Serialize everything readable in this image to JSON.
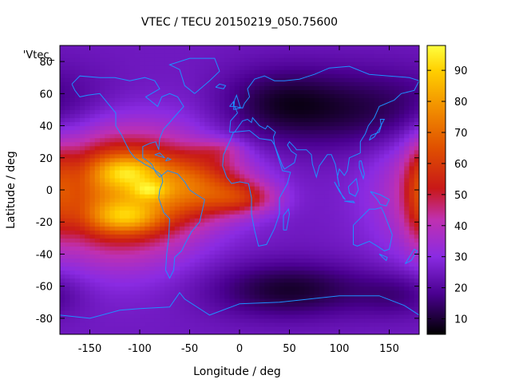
{
  "chart_data": {
    "type": "heatmap",
    "title": "VTEC / TECU 20150219_050.75600",
    "xlabel": "Longitude / deg",
    "ylabel": "Latitude / deg",
    "legend_label": "'Vtec_",
    "xlim": [
      -180,
      180
    ],
    "ylim": [
      -90,
      90
    ],
    "x_ticks": [
      -150,
      -100,
      -50,
      0,
      50,
      100,
      150
    ],
    "y_ticks": [
      -80,
      -60,
      -40,
      -20,
      0,
      20,
      40,
      60,
      80
    ],
    "colorbar": {
      "range": [
        5,
        98
      ],
      "ticks": [
        10,
        20,
        30,
        40,
        50,
        60,
        70,
        80,
        90
      ],
      "stops": [
        {
          "v": 5,
          "color": "#000000"
        },
        {
          "v": 18,
          "color": "#4a0090"
        },
        {
          "v": 30,
          "color": "#8a2be2"
        },
        {
          "v": 42,
          "color": "#c030b0"
        },
        {
          "v": 52,
          "color": "#c81818"
        },
        {
          "v": 65,
          "color": "#e05000"
        },
        {
          "v": 78,
          "color": "#f29000"
        },
        {
          "v": 90,
          "color": "#ffd000"
        },
        {
          "v": 98,
          "color": "#ffff40"
        }
      ]
    },
    "background_value": 25,
    "blobs": [
      {
        "lon": -120,
        "lat": 0,
        "slon": 55,
        "slat": 28,
        "amp": 48
      },
      {
        "lon": -115,
        "lat": 12,
        "slon": 22,
        "slat": 7,
        "amp": 22
      },
      {
        "lon": -115,
        "lat": -17,
        "slon": 25,
        "slat": 7,
        "amp": 24
      },
      {
        "lon": -90,
        "lat": 0,
        "slon": 12,
        "slat": 4,
        "amp": 15
      },
      {
        "lon": -40,
        "lat": 3,
        "slon": 40,
        "slat": 14,
        "amp": 28
      },
      {
        "lon": 5,
        "lat": -5,
        "slon": 25,
        "slat": 7,
        "amp": 18
      },
      {
        "lon": -20,
        "lat": 25,
        "slon": 18,
        "slat": 5,
        "amp": 10
      },
      {
        "lon": 130,
        "lat": 50,
        "slon": 80,
        "slat": 18,
        "amp": -14
      },
      {
        "lon": 40,
        "lat": 55,
        "slon": 40,
        "slat": 15,
        "amp": -10
      },
      {
        "lon": 50,
        "lat": -62,
        "slon": 55,
        "slat": 12,
        "amp": -16
      },
      {
        "lon": 160,
        "lat": -65,
        "slon": 30,
        "slat": 10,
        "amp": -8
      },
      {
        "lon": 180,
        "lat": 0,
        "slon": 10,
        "slat": 22,
        "amp": 14
      }
    ],
    "coastlines": [
      [
        [
          -168,
          66
        ],
        [
          -160,
          71
        ],
        [
          -140,
          70
        ],
        [
          -125,
          70
        ],
        [
          -110,
          68
        ],
        [
          -95,
          70
        ],
        [
          -85,
          68
        ],
        [
          -80,
          63
        ],
        [
          -94,
          58
        ],
        [
          -82,
          52
        ],
        [
          -78,
          58
        ],
        [
          -70,
          60
        ],
        [
          -62,
          58
        ],
        [
          -56,
          52
        ],
        [
          -66,
          45
        ],
        [
          -70,
          42
        ],
        [
          -76,
          38
        ],
        [
          -80,
          32
        ],
        [
          -81,
          25
        ],
        [
          -84,
          30
        ],
        [
          -90,
          29
        ],
        [
          -97,
          27
        ],
        [
          -97,
          20
        ],
        [
          -92,
          18
        ],
        [
          -88,
          16
        ],
        [
          -84,
          11
        ],
        [
          -80,
          8
        ],
        [
          -78,
          9
        ],
        [
          -86,
          13
        ],
        [
          -95,
          16
        ],
        [
          -105,
          20
        ],
        [
          -110,
          24
        ],
        [
          -115,
          30
        ],
        [
          -118,
          34
        ],
        [
          -124,
          40
        ],
        [
          -124,
          48
        ],
        [
          -132,
          54
        ],
        [
          -140,
          60
        ],
        [
          -152,
          59
        ],
        [
          -160,
          58
        ],
        [
          -165,
          62
        ],
        [
          -168,
          66
        ]
      ],
      [
        [
          -78,
          9
        ],
        [
          -72,
          12
        ],
        [
          -62,
          10
        ],
        [
          -55,
          5
        ],
        [
          -50,
          0
        ],
        [
          -43,
          -3
        ],
        [
          -35,
          -6
        ],
        [
          -37,
          -12
        ],
        [
          -40,
          -20
        ],
        [
          -48,
          -26
        ],
        [
          -55,
          -34
        ],
        [
          -58,
          -38
        ],
        [
          -65,
          -42
        ],
        [
          -66,
          -50
        ],
        [
          -70,
          -55
        ],
        [
          -74,
          -50
        ],
        [
          -73,
          -40
        ],
        [
          -71,
          -30
        ],
        [
          -70,
          -18
        ],
        [
          -76,
          -14
        ],
        [
          -81,
          -5
        ],
        [
          -80,
          0
        ],
        [
          -77,
          5
        ],
        [
          -78,
          9
        ]
      ],
      [
        [
          -17,
          15
        ],
        [
          -16,
          22
        ],
        [
          -10,
          30
        ],
        [
          -6,
          36
        ],
        [
          10,
          37
        ],
        [
          20,
          32
        ],
        [
          32,
          31
        ],
        [
          35,
          28
        ],
        [
          43,
          12
        ],
        [
          51,
          11
        ],
        [
          48,
          4
        ],
        [
          40,
          -5
        ],
        [
          40,
          -15
        ],
        [
          35,
          -24
        ],
        [
          27,
          -34
        ],
        [
          19,
          -35
        ],
        [
          15,
          -25
        ],
        [
          12,
          -15
        ],
        [
          12,
          -5
        ],
        [
          9,
          4
        ],
        [
          0,
          5
        ],
        [
          -8,
          4
        ],
        [
          -13,
          8
        ],
        [
          -17,
          15
        ]
      ],
      [
        [
          -10,
          36
        ],
        [
          -9,
          43
        ],
        [
          -2,
          48
        ],
        [
          -5,
          52
        ],
        [
          3,
          51
        ],
        [
          5,
          54
        ],
        [
          10,
          58
        ],
        [
          8,
          63
        ],
        [
          15,
          69
        ],
        [
          25,
          71
        ],
        [
          35,
          68
        ],
        [
          45,
          68
        ],
        [
          60,
          69
        ],
        [
          75,
          72
        ],
        [
          90,
          76
        ],
        [
          110,
          77
        ],
        [
          130,
          72
        ],
        [
          150,
          71
        ],
        [
          170,
          70
        ],
        [
          180,
          68
        ],
        [
          175,
          62
        ],
        [
          162,
          60
        ],
        [
          155,
          56
        ],
        [
          140,
          52
        ],
        [
          135,
          45
        ],
        [
          129,
          40
        ],
        [
          126,
          35
        ],
        [
          121,
          30
        ],
        [
          121,
          23
        ],
        [
          110,
          20
        ],
        [
          108,
          12
        ],
        [
          105,
          9
        ],
        [
          100,
          13
        ],
        [
          98,
          8
        ],
        [
          100,
          2
        ],
        [
          96,
          16
        ],
        [
          92,
          22
        ],
        [
          88,
          22
        ],
        [
          80,
          15
        ],
        [
          77,
          8
        ],
        [
          73,
          16
        ],
        [
          72,
          22
        ],
        [
          67,
          25
        ],
        [
          57,
          25
        ],
        [
          56,
          26
        ],
        [
          50,
          30
        ],
        [
          48,
          28
        ],
        [
          52,
          24
        ],
        [
          57,
          22
        ],
        [
          55,
          17
        ],
        [
          45,
          13
        ],
        [
          43,
          15
        ],
        [
          35,
          28
        ],
        [
          34,
          33
        ],
        [
          36,
          36
        ],
        [
          28,
          40
        ],
        [
          26,
          38
        ],
        [
          20,
          40
        ],
        [
          13,
          45
        ],
        [
          12,
          42
        ],
        [
          8,
          44
        ],
        [
          3,
          43
        ],
        [
          -5,
          36
        ],
        [
          -10,
          36
        ]
      ],
      [
        [
          114,
          -22
        ],
        [
          114,
          -34
        ],
        [
          118,
          -35
        ],
        [
          130,
          -32
        ],
        [
          138,
          -35
        ],
        [
          145,
          -38
        ],
        [
          150,
          -37
        ],
        [
          153,
          -28
        ],
        [
          145,
          -15
        ],
        [
          142,
          -11
        ],
        [
          136,
          -12
        ],
        [
          130,
          -12
        ],
        [
          122,
          -17
        ],
        [
          114,
          -22
        ]
      ],
      [
        [
          -180,
          -78
        ],
        [
          -150,
          -80
        ],
        [
          -120,
          -75
        ],
        [
          -100,
          -74
        ],
        [
          -70,
          -73
        ],
        [
          -60,
          -64
        ],
        [
          -55,
          -68
        ],
        [
          -30,
          -78
        ],
        [
          0,
          -71
        ],
        [
          40,
          -70
        ],
        [
          70,
          -68
        ],
        [
          100,
          -66
        ],
        [
          140,
          -66
        ],
        [
          165,
          -72
        ],
        [
          180,
          -78
        ]
      ],
      [
        [
          -45,
          60
        ],
        [
          -55,
          65
        ],
        [
          -60,
          75
        ],
        [
          -70,
          78
        ],
        [
          -50,
          82
        ],
        [
          -25,
          82
        ],
        [
          -20,
          74
        ],
        [
          -30,
          68
        ],
        [
          -45,
          60
        ]
      ],
      [
        [
          130,
          31
        ],
        [
          132,
          34
        ],
        [
          140,
          36
        ],
        [
          142,
          40
        ],
        [
          141,
          44
        ],
        [
          145,
          44
        ],
        [
          140,
          38
        ],
        [
          135,
          33
        ],
        [
          130,
          31
        ]
      ],
      [
        [
          95,
          5
        ],
        [
          100,
          0
        ],
        [
          104,
          -5
        ],
        [
          106,
          -6
        ],
        [
          100,
          -1
        ],
        [
          95,
          5
        ]
      ],
      [
        [
          105,
          -7
        ],
        [
          115,
          -8
        ],
        [
          114,
          -7
        ],
        [
          105,
          -7
        ]
      ],
      [
        [
          109,
          2
        ],
        [
          117,
          7
        ],
        [
          119,
          0
        ],
        [
          116,
          -4
        ],
        [
          110,
          -2
        ],
        [
          109,
          2
        ]
      ],
      [
        [
          131,
          -1
        ],
        [
          141,
          -3
        ],
        [
          150,
          -6
        ],
        [
          147,
          -10
        ],
        [
          141,
          -9
        ],
        [
          138,
          -6
        ],
        [
          131,
          -1
        ]
      ],
      [
        [
          120,
          18
        ],
        [
          122,
          18
        ],
        [
          125,
          10
        ],
        [
          124,
          7
        ],
        [
          120,
          14
        ],
        [
          120,
          18
        ]
      ],
      [
        [
          44,
          -25
        ],
        [
          47,
          -25
        ],
        [
          50,
          -15
        ],
        [
          49,
          -12
        ],
        [
          44,
          -16
        ],
        [
          44,
          -25
        ]
      ],
      [
        [
          -6,
          50
        ],
        [
          -5,
          56
        ],
        [
          -3,
          59
        ],
        [
          0,
          53
        ],
        [
          1,
          51
        ],
        [
          -6,
          50
        ]
      ],
      [
        [
          -10,
          52
        ],
        [
          -6,
          55
        ],
        [
          -6,
          52
        ],
        [
          -10,
          52
        ]
      ],
      [
        [
          -24,
          64
        ],
        [
          -20,
          66
        ],
        [
          -14,
          65
        ],
        [
          -16,
          63
        ],
        [
          -24,
          64
        ]
      ],
      [
        [
          166,
          -46
        ],
        [
          172,
          -40
        ],
        [
          175,
          -37
        ],
        [
          178,
          -38
        ],
        [
          172,
          -44
        ],
        [
          166,
          -46
        ]
      ],
      [
        [
          140,
          -40
        ],
        [
          148,
          -42
        ],
        [
          147,
          -44
        ],
        [
          145,
          -43
        ],
        [
          140,
          -40
        ]
      ],
      [
        [
          -85,
          22
        ],
        [
          -75,
          20
        ],
        [
          -80,
          23
        ],
        [
          -85,
          22
        ]
      ],
      [
        [
          -74,
          18
        ],
        [
          -69,
          19
        ],
        [
          -72,
          20
        ],
        [
          -74,
          18
        ]
      ]
    ]
  }
}
